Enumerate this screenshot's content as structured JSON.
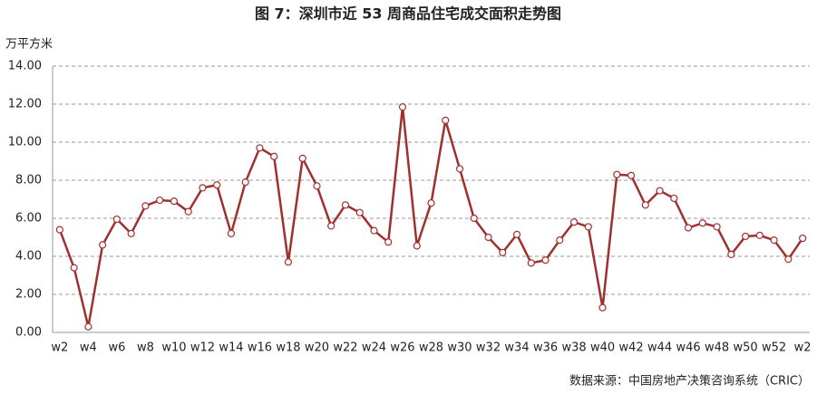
{
  "chart_data": {
    "type": "line",
    "title": "图 7：深圳市近 53 周商品住宅成交面积走势图",
    "y_axis_label": "万平方米",
    "source": "数据来源：中国房地产决策咨询系统（CRIC）",
    "categories": [
      "w2",
      null,
      "w4",
      null,
      "w6",
      null,
      "w8",
      null,
      "w10",
      null,
      "w12",
      null,
      "w14",
      null,
      "w16",
      null,
      "w18",
      null,
      "w20",
      null,
      "w22",
      null,
      "w24",
      null,
      "w26",
      null,
      "w28",
      null,
      "w30",
      null,
      "w32",
      null,
      "w34",
      null,
      "w36",
      null,
      "w38",
      null,
      "w40",
      null,
      "w42",
      null,
      "w44",
      null,
      "w46",
      null,
      "w48",
      null,
      "w50",
      null,
      "w52",
      null,
      "w2"
    ],
    "values": [
      5.4,
      3.4,
      0.3,
      4.6,
      5.95,
      5.2,
      6.65,
      6.95,
      6.9,
      6.35,
      7.6,
      7.75,
      5.2,
      7.9,
      9.7,
      9.25,
      3.7,
      9.15,
      7.7,
      5.6,
      6.7,
      6.3,
      5.35,
      4.75,
      11.85,
      4.55,
      6.8,
      11.15,
      8.6,
      6.0,
      5.0,
      4.2,
      5.15,
      3.65,
      3.8,
      4.85,
      5.8,
      5.55,
      1.3,
      8.3,
      8.25,
      6.7,
      7.45,
      7.05,
      5.5,
      5.75,
      5.55,
      4.1,
      5.05,
      5.1,
      4.85,
      3.85,
      4.95
    ],
    "color": "#a0302e",
    "ylim": [
      0,
      14
    ],
    "yticks": [
      {
        "value": 0,
        "label": "0.00"
      },
      {
        "value": 2,
        "label": "2.00"
      },
      {
        "value": 4,
        "label": "4.00"
      },
      {
        "value": 6,
        "label": "6.00"
      },
      {
        "value": 8,
        "label": "8.00"
      },
      {
        "value": 10,
        "label": "10.00"
      },
      {
        "value": 12,
        "label": "12.00"
      },
      {
        "value": 14,
        "label": "14.00"
      }
    ],
    "grid": true
  }
}
